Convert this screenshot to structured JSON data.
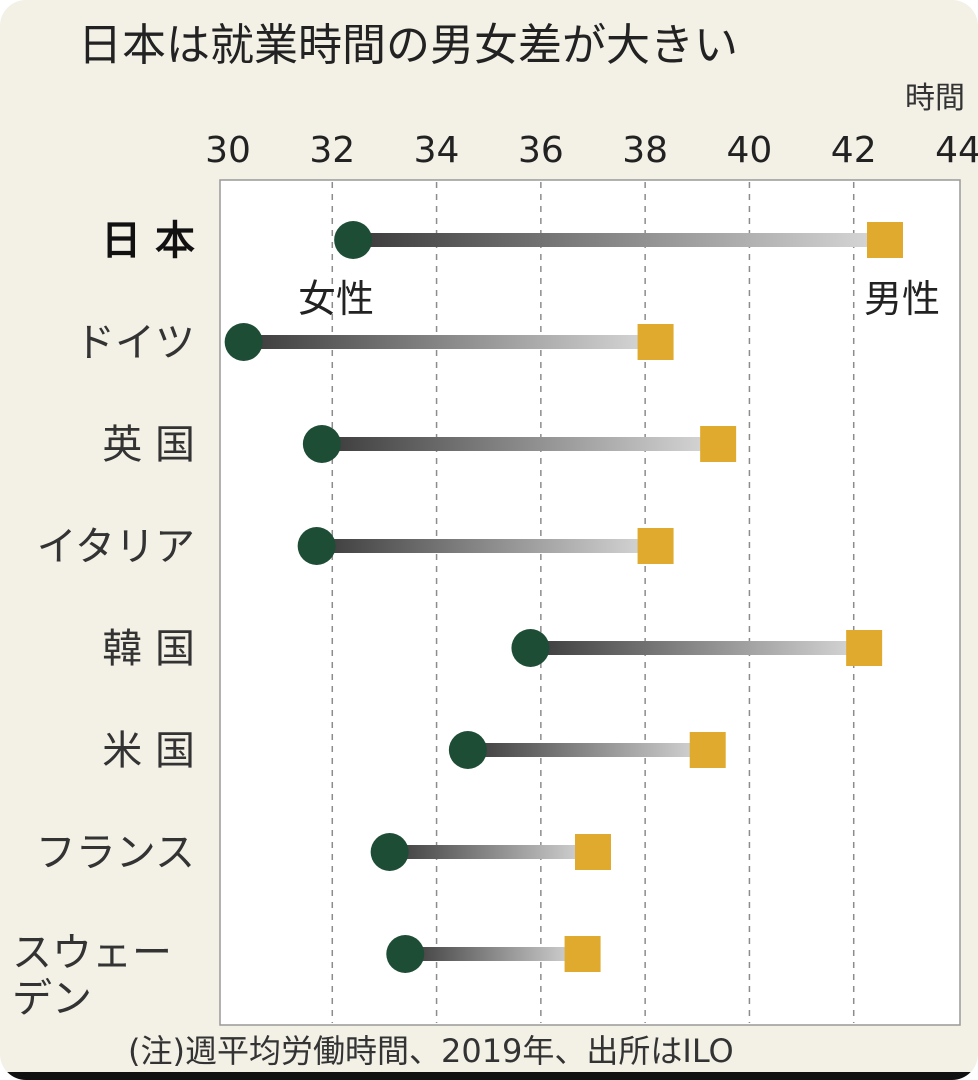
{
  "chart_data": {
    "type": "dumbbell",
    "title": "日本は就業時間の男女差が大きい",
    "unit": "時間",
    "x_ticks": [
      30,
      32,
      34,
      36,
      38,
      40,
      42,
      44
    ],
    "xlim": [
      30,
      44
    ],
    "grid": "vertical dashed",
    "categories": [
      "日 本",
      "ドイツ",
      "英 国",
      "イタリア",
      "韓 国",
      "米 国",
      "フランス",
      "スウェーデン"
    ],
    "series": [
      {
        "name": "女性",
        "color": "#1e4d36",
        "marker": "circle",
        "values": [
          32.4,
          30.3,
          31.8,
          31.7,
          35.8,
          34.6,
          33.1,
          33.4
        ]
      },
      {
        "name": "男性",
        "color": "#e0aa2e",
        "marker": "square",
        "values": [
          42.6,
          38.2,
          39.4,
          38.2,
          42.2,
          39.2,
          37.0,
          36.8
        ]
      }
    ],
    "note": "(注)週平均労働時間、2019年、出所はILO"
  }
}
